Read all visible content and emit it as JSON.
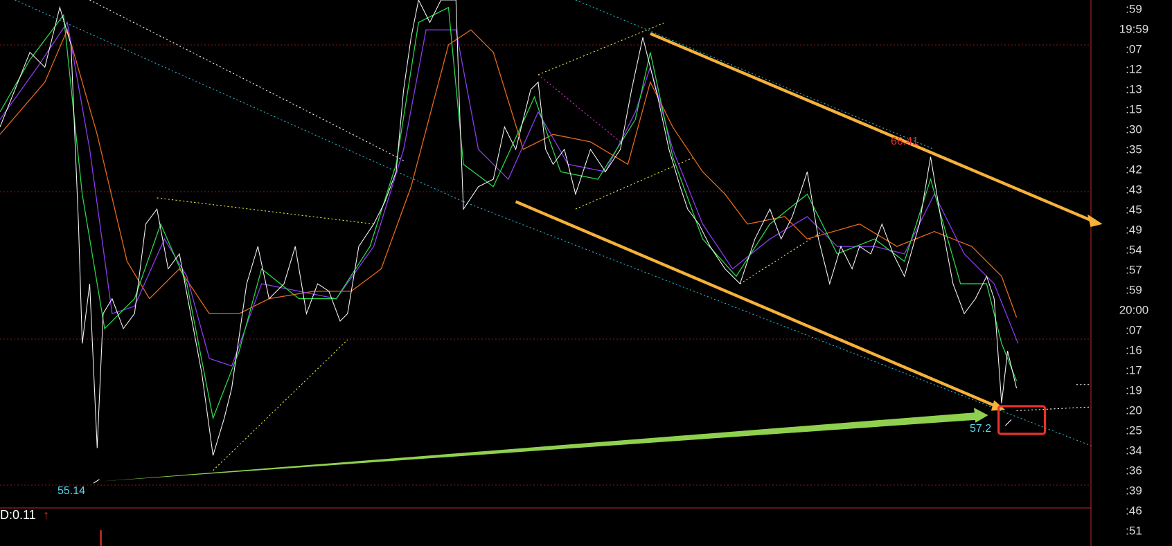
{
  "right_axis": {
    "labels": [
      ":59",
      "19:59",
      ":07",
      ":12",
      ":13",
      ":15",
      ":30",
      ":35",
      ":42",
      ":43",
      ":45",
      ":49",
      ":54",
      ":57",
      ":59",
      "20:00",
      ":07",
      ":16",
      ":17",
      ":19",
      ":20",
      ":25",
      ":34",
      ":36",
      ":39",
      ":46",
      ":51"
    ]
  },
  "annotations": {
    "high": "66.41",
    "low": "55.14",
    "current": "57.2"
  },
  "indicator": {
    "label": "D:0.11",
    "arrow": "↑"
  }
}
